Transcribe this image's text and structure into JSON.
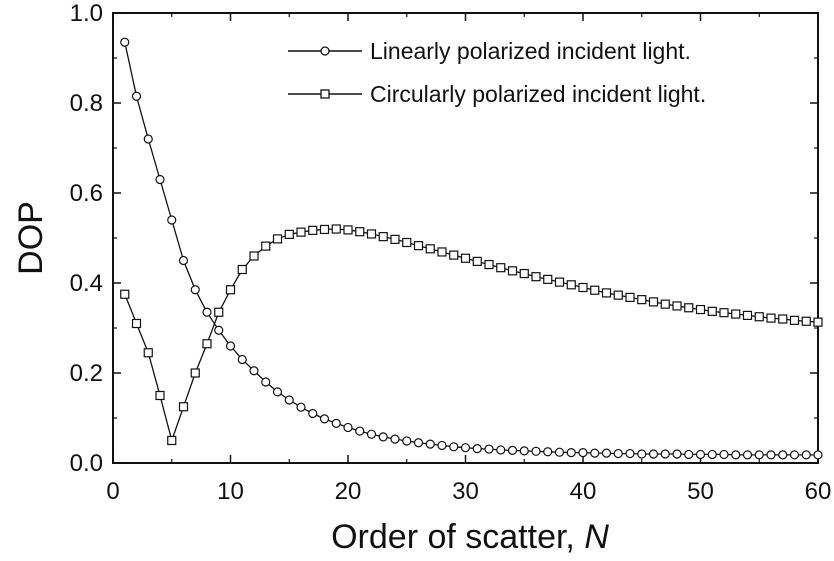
{
  "chart_data": {
    "type": "line",
    "xlabel_text": "Order of scatter, ",
    "xlabel_var": "N",
    "ylabel": "DOP",
    "xlim": [
      0,
      60
    ],
    "ylim": [
      0.0,
      1.0
    ],
    "xticks": [
      0,
      10,
      20,
      30,
      40,
      50,
      60
    ],
    "xtick_labels": [
      "0",
      "10",
      "20",
      "30",
      "40",
      "50",
      "60"
    ],
    "yticks": [
      0.0,
      0.2,
      0.4,
      0.6,
      0.8,
      1.0
    ],
    "ytick_labels": [
      "0.0",
      "0.2",
      "0.4",
      "0.6",
      "0.8",
      "1.0"
    ],
    "grid": false,
    "legend_position": "top-right",
    "x": [
      1,
      2,
      3,
      4,
      5,
      6,
      7,
      8,
      9,
      10,
      11,
      12,
      13,
      14,
      15,
      16,
      17,
      18,
      19,
      20,
      21,
      22,
      23,
      24,
      25,
      26,
      27,
      28,
      29,
      30,
      31,
      32,
      33,
      34,
      35,
      36,
      37,
      38,
      39,
      40,
      41,
      42,
      43,
      44,
      45,
      46,
      47,
      48,
      49,
      50,
      51,
      52,
      53,
      54,
      55,
      56,
      57,
      58,
      59,
      60
    ],
    "series": [
      {
        "name": "Linearly polarized incident light.",
        "marker": "circle",
        "values": [
          0.935,
          0.815,
          0.72,
          0.63,
          0.54,
          0.45,
          0.385,
          0.335,
          0.295,
          0.26,
          0.23,
          0.205,
          0.18,
          0.158,
          0.14,
          0.124,
          0.11,
          0.098,
          0.088,
          0.079,
          0.071,
          0.064,
          0.058,
          0.053,
          0.049,
          0.045,
          0.042,
          0.039,
          0.036,
          0.034,
          0.032,
          0.031,
          0.029,
          0.028,
          0.027,
          0.026,
          0.025,
          0.024,
          0.023,
          0.023,
          0.022,
          0.022,
          0.021,
          0.021,
          0.02,
          0.02,
          0.02,
          0.02,
          0.019,
          0.019,
          0.019,
          0.019,
          0.018,
          0.018,
          0.018,
          0.018,
          0.018,
          0.018,
          0.018,
          0.018
        ]
      },
      {
        "name": "Circularly polarized incident light.",
        "marker": "square",
        "values": [
          0.375,
          0.31,
          0.245,
          0.15,
          0.05,
          0.125,
          0.2,
          0.265,
          0.335,
          0.385,
          0.43,
          0.46,
          0.482,
          0.498,
          0.508,
          0.513,
          0.517,
          0.519,
          0.52,
          0.518,
          0.514,
          0.509,
          0.503,
          0.497,
          0.49,
          0.483,
          0.476,
          0.469,
          0.462,
          0.455,
          0.448,
          0.441,
          0.434,
          0.427,
          0.421,
          0.414,
          0.408,
          0.402,
          0.396,
          0.39,
          0.384,
          0.378,
          0.373,
          0.368,
          0.363,
          0.358,
          0.353,
          0.349,
          0.345,
          0.341,
          0.337,
          0.334,
          0.331,
          0.328,
          0.325,
          0.322,
          0.32,
          0.317,
          0.315,
          0.313
        ]
      }
    ]
  }
}
